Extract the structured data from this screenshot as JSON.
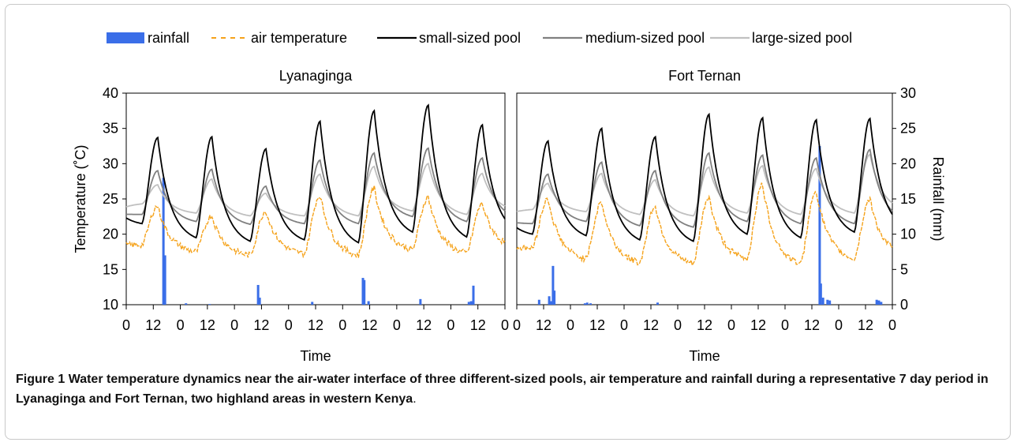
{
  "legend": {
    "items": [
      {
        "label": "rainfall",
        "color": "#3a6ee8",
        "kind": "bar"
      },
      {
        "label": "air temperature",
        "color": "#f5a21a",
        "kind": "dash"
      },
      {
        "label": "small-sized pool",
        "color": "#000000",
        "kind": "line"
      },
      {
        "label": "medium-sized pool",
        "color": "#808080",
        "kind": "line"
      },
      {
        "label": "large-sized pool",
        "color": "#c0c0c0",
        "kind": "line"
      }
    ]
  },
  "caption": {
    "label": "Figure 1",
    "text": "Water temperature dynamics near the air-water interface of three different-sized pools, air temperature and rainfall during a representative 7 day period in Lyanaginga and Fort Ternan, two highland areas in western Kenya",
    "end": "."
  },
  "chart_data": [
    {
      "type": "line",
      "title": "Lyanaginga",
      "xlabel": "Time",
      "ylabel": "Temperature (˚C)",
      "ylim": [
        10,
        40
      ],
      "yticks": [
        10,
        15,
        20,
        25,
        30,
        35,
        40
      ],
      "xticks": [
        "0",
        "12",
        "0",
        "12",
        "0",
        "12",
        "0",
        "12",
        "0",
        "12",
        "0",
        "12",
        "0",
        "12",
        "0"
      ],
      "x_hours_range": [
        0,
        168
      ],
      "series": [
        {
          "name": "small-sized pool",
          "color": "#000000",
          "peaks": [
            33.7,
            33.8,
            32.1,
            36.0,
            37.5,
            38.3,
            35.5
          ],
          "troughs": [
            21.5,
            19.5,
            19.0,
            19.2,
            18.8,
            20.3,
            19.6,
            20.2
          ]
        },
        {
          "name": "medium-sized pool",
          "color": "#808080",
          "peaks": [
            29.0,
            29.2,
            26.8,
            30.5,
            31.5,
            32.2,
            30.8
          ],
          "troughs": [
            22.8,
            21.8,
            21.4,
            21.5,
            21.5,
            22.5,
            21.8,
            22.2
          ]
        },
        {
          "name": "large-sized pool",
          "color": "#c0c0c0",
          "peaks": [
            27.0,
            27.8,
            25.8,
            28.5,
            29.6,
            30.0,
            28.6
          ],
          "troughs": [
            24.3,
            23.0,
            22.6,
            22.6,
            22.6,
            23.3,
            22.8,
            23.3
          ]
        },
        {
          "name": "air temperature",
          "color": "#f5a21a",
          "peaks": [
            24.0,
            22.6,
            23.3,
            25.5,
            26.5,
            25.3,
            24.3
          ],
          "troughs": [
            18.5,
            17.5,
            17.0,
            17.2,
            17.0,
            17.8,
            17.3,
            18.0
          ]
        }
      ],
      "rainfall": {
        "name": "rainfall",
        "ylim": [
          0,
          30
        ],
        "yticks": [
          0,
          5,
          10,
          15,
          20,
          25,
          30
        ],
        "ylabel": "Rainfall (mm)",
        "events": [
          {
            "hour": 16.5,
            "mm": 18.0
          },
          {
            "hour": 17.2,
            "mm": 7.0
          },
          {
            "hour": 26.5,
            "mm": 0.2
          },
          {
            "hour": 37.0,
            "mm": 0.1
          },
          {
            "hour": 58.5,
            "mm": 2.8
          },
          {
            "hour": 59.2,
            "mm": 1.0
          },
          {
            "hour": 82.5,
            "mm": 0.4
          },
          {
            "hour": 105.0,
            "mm": 3.8
          },
          {
            "hour": 105.6,
            "mm": 3.5
          },
          {
            "hour": 107.5,
            "mm": 0.5
          },
          {
            "hour": 130.5,
            "mm": 0.8
          },
          {
            "hour": 152.0,
            "mm": 0.4
          },
          {
            "hour": 153.0,
            "mm": 0.5
          },
          {
            "hour": 154.0,
            "mm": 2.7
          }
        ]
      }
    },
    {
      "type": "line",
      "title": "Fort Ternan",
      "xlabel": "Time",
      "ylabel": "Rainfall (mm)",
      "ylim": [
        10,
        40
      ],
      "xticks": [
        "0",
        "12",
        "0",
        "12",
        "0",
        "12",
        "0",
        "12",
        "0",
        "12",
        "0",
        "12",
        "0",
        "12",
        "0"
      ],
      "x_hours_range": [
        0,
        168
      ],
      "series": [
        {
          "name": "small-sized pool",
          "color": "#000000",
          "peaks": [
            33.2,
            35.0,
            33.8,
            37.0,
            36.5,
            36.2,
            36.4
          ],
          "troughs": [
            20.0,
            19.8,
            19.2,
            19.0,
            20.0,
            19.5,
            20.3,
            20.8
          ]
        },
        {
          "name": "medium-sized pool",
          "color": "#808080",
          "peaks": [
            28.5,
            30.2,
            29.0,
            31.5,
            31.2,
            30.8,
            32.0
          ],
          "troughs": [
            21.5,
            21.8,
            21.2,
            21.0,
            21.8,
            21.5,
            21.5,
            22.0
          ]
        },
        {
          "name": "large-sized pool",
          "color": "#c0c0c0",
          "peaks": [
            27.2,
            28.6,
            27.7,
            29.5,
            29.7,
            29.3,
            31.3
          ],
          "troughs": [
            23.5,
            23.2,
            22.8,
            22.6,
            23.0,
            22.8,
            23.0,
            23.4
          ]
        },
        {
          "name": "air temperature",
          "color": "#f5a21a",
          "peaks": [
            25.0,
            24.5,
            24.0,
            25.3,
            27.0,
            26.2,
            25.0
          ],
          "troughs": [
            18.0,
            16.5,
            16.0,
            15.8,
            16.5,
            15.8,
            16.5,
            17.0
          ]
        }
      ],
      "rainfall": {
        "name": "rainfall",
        "ylim": [
          0,
          30
        ],
        "events": [
          {
            "hour": 10.0,
            "mm": 0.7
          },
          {
            "hour": 14.5,
            "mm": 1.2
          },
          {
            "hour": 15.3,
            "mm": 0.5
          },
          {
            "hour": 16.2,
            "mm": 5.5
          },
          {
            "hour": 16.8,
            "mm": 2.0
          },
          {
            "hour": 30.5,
            "mm": 0.2
          },
          {
            "hour": 31.5,
            "mm": 0.3
          },
          {
            "hour": 33.0,
            "mm": 0.2
          },
          {
            "hour": 63.0,
            "mm": 0.3
          },
          {
            "hour": 135.5,
            "mm": 22.5
          },
          {
            "hour": 136.0,
            "mm": 3.0
          },
          {
            "hour": 137.0,
            "mm": 1.0
          },
          {
            "hour": 139.0,
            "mm": 0.7
          },
          {
            "hour": 140.0,
            "mm": 0.6
          },
          {
            "hour": 161.0,
            "mm": 0.7
          },
          {
            "hour": 162.0,
            "mm": 0.6
          },
          {
            "hour": 163.0,
            "mm": 0.4
          }
        ]
      }
    }
  ]
}
